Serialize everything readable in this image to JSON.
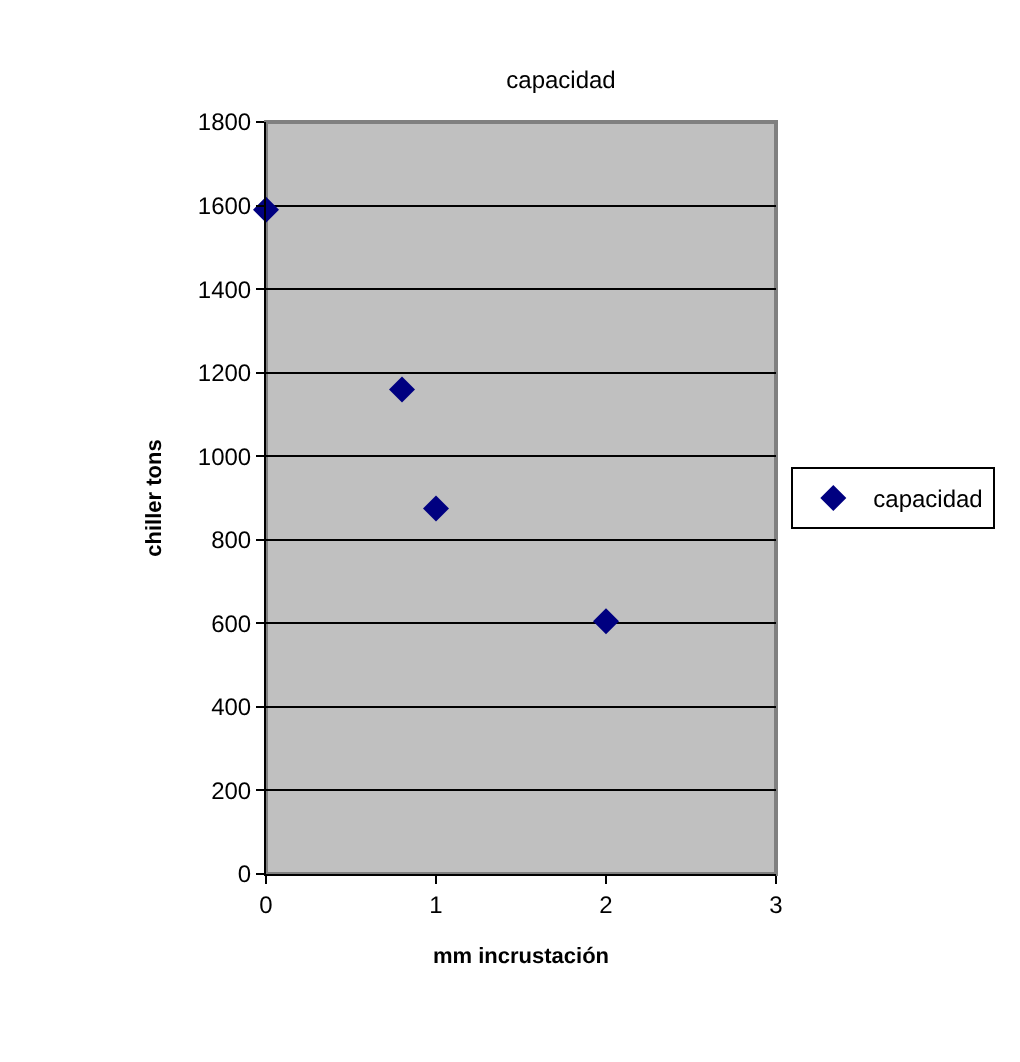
{
  "chart_data": {
    "type": "scatter",
    "title": "capacidad",
    "xlabel": "mm incrustación",
    "ylabel": "chiller tons",
    "x": [
      0,
      0.8,
      1,
      2
    ],
    "series": [
      {
        "name": "capacidad",
        "color": "#000080",
        "values": [
          1590,
          1160,
          875,
          605
        ]
      }
    ],
    "xlim": [
      0,
      3
    ],
    "xticks": [
      0,
      1,
      2,
      3
    ],
    "ylim": [
      0,
      1800
    ],
    "yticks": [
      0,
      200,
      400,
      600,
      800,
      1000,
      1200,
      1400,
      1600,
      1800
    ],
    "grid": "y",
    "legend": "right",
    "marker": "diamond"
  }
}
